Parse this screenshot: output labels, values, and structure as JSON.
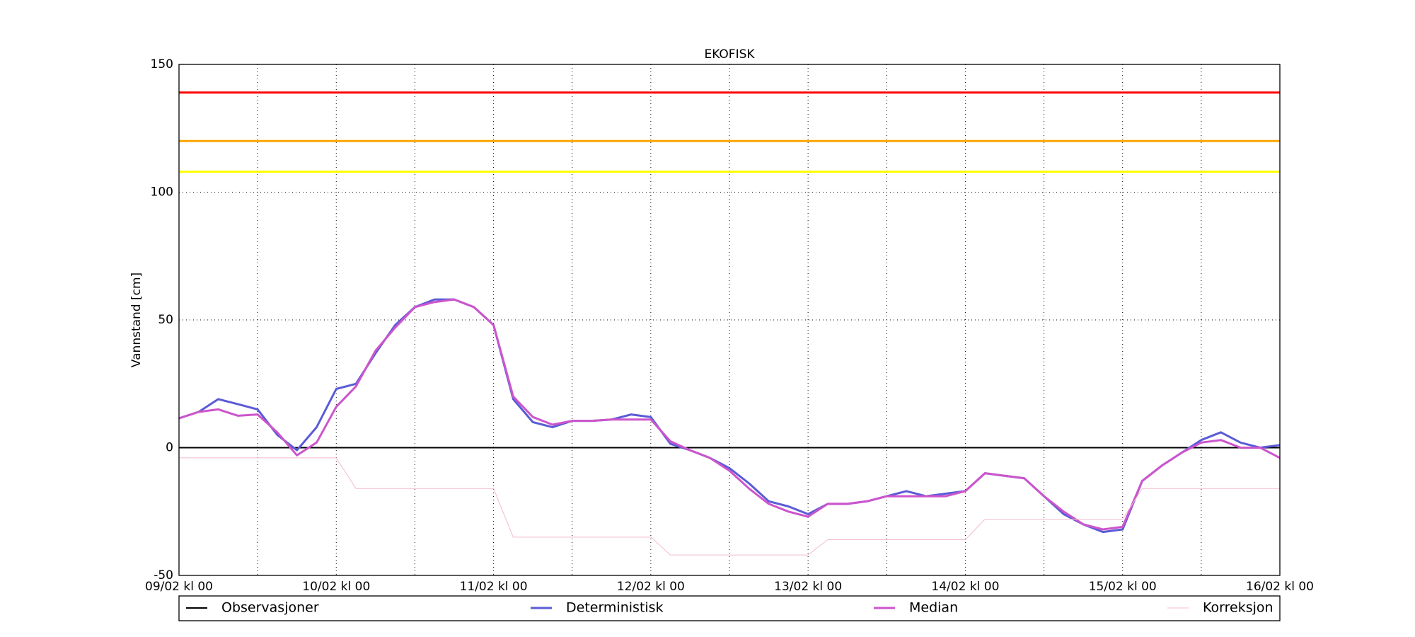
{
  "chart_data": {
    "type": "line",
    "title": "EKOFISK",
    "y_label": "Vannstand [cm]",
    "x": [
      0,
      3,
      6,
      9,
      12,
      15,
      18,
      21,
      24,
      27,
      30,
      33,
      36,
      39,
      42,
      45,
      48,
      51,
      54,
      57,
      60,
      63,
      66,
      69,
      72,
      75,
      78,
      81,
      84,
      87,
      90,
      93,
      96,
      99,
      102,
      105,
      108,
      111,
      114,
      117,
      120,
      123,
      126,
      129,
      132,
      135,
      138,
      141,
      144,
      147,
      150,
      153,
      156,
      159,
      162,
      165,
      168
    ],
    "xlim": [
      0,
      168
    ],
    "xticks": [
      {
        "value": 0,
        "label": "09/02 kl 00"
      },
      {
        "value": 12,
        "label": null
      },
      {
        "value": 24,
        "label": "10/02 kl 00"
      },
      {
        "value": 36,
        "label": null
      },
      {
        "value": 48,
        "label": "11/02 kl 00"
      },
      {
        "value": 60,
        "label": null
      },
      {
        "value": 72,
        "label": "12/02 kl 00"
      },
      {
        "value": 84,
        "label": null
      },
      {
        "value": 96,
        "label": "13/02 kl 00"
      },
      {
        "value": 108,
        "label": null
      },
      {
        "value": 120,
        "label": "14/02 kl 00"
      },
      {
        "value": 132,
        "label": null
      },
      {
        "value": 144,
        "label": "15/02 kl 00"
      },
      {
        "value": 156,
        "label": null
      },
      {
        "value": 168,
        "label": "16/02 kl 00"
      }
    ],
    "ylim": [
      -50,
      150
    ],
    "yticks": [
      -50,
      0,
      50,
      100,
      150
    ],
    "grid": true,
    "reference_lines": [
      {
        "value": 139,
        "color": "#ff0000"
      },
      {
        "value": 120,
        "color": "#ffa500"
      },
      {
        "value": 108,
        "color": "#ffff00"
      },
      {
        "value": 0,
        "color": "#000000"
      }
    ],
    "series": [
      {
        "name": "Observasjoner",
        "color": "#000000",
        "values": [
          null,
          null,
          null,
          null,
          null,
          null,
          null,
          null,
          null,
          null,
          null,
          null,
          null,
          null,
          null,
          null,
          null,
          null,
          null,
          null,
          null,
          null,
          null,
          null,
          null,
          null,
          null,
          null,
          null,
          null,
          null,
          null,
          null,
          null,
          null,
          null,
          null,
          null,
          null,
          null,
          null,
          null,
          null,
          null,
          null,
          null,
          null,
          null,
          null,
          null,
          null,
          null,
          null,
          null,
          null,
          null,
          null
        ]
      },
      {
        "name": "Deterministisk",
        "color": "#5b5bd6",
        "values": [
          11.5,
          14,
          19,
          17,
          15,
          5,
          -1,
          8,
          23,
          25,
          37,
          48,
          55,
          58,
          58,
          55,
          48,
          19,
          10,
          8,
          10.5,
          10.5,
          11,
          13,
          12,
          1.5,
          -1,
          -4,
          -8,
          -14,
          -21,
          -23,
          -26,
          -22,
          -22,
          -21,
          -19,
          -17,
          -19,
          -18,
          -17,
          -10,
          -11,
          -12,
          -19,
          -26,
          -30,
          -33,
          -32,
          -13,
          -7,
          -2,
          3,
          6,
          2,
          0,
          1
        ]
      },
      {
        "name": "Median",
        "color": "#cc55cc",
        "values": [
          11.5,
          14,
          15,
          12.5,
          13,
          6,
          -3,
          2,
          16,
          24,
          38,
          47,
          55,
          57,
          58,
          55,
          48,
          20,
          12,
          9,
          10.5,
          10.5,
          11,
          11,
          11,
          2.5,
          -1,
          -4,
          -9,
          -16,
          -22,
          -25,
          -27,
          -22,
          -22,
          -21,
          -19,
          -19,
          -19,
          -19,
          -17,
          -10,
          -11,
          -12,
          -19,
          -25,
          -30,
          -32,
          -31,
          -13,
          -7,
          -2,
          2,
          3,
          0,
          0,
          -4
        ]
      },
      {
        "name": "Korreksjon",
        "color": "#f4bccc",
        "values": [
          -4,
          -4,
          -4,
          -4,
          -4,
          -4,
          -4,
          -4,
          -4,
          -16,
          -16,
          -16,
          -16,
          -16,
          -16,
          -16,
          -16,
          -35,
          -35,
          -35,
          -35,
          -35,
          -35,
          -35,
          -35,
          -42,
          -42,
          -42,
          -42,
          -42,
          -42,
          -42,
          -42,
          -36,
          -36,
          -36,
          -36,
          -36,
          -36,
          -36,
          -36,
          -28,
          -28,
          -28,
          -28,
          -28,
          -28,
          -28,
          -28,
          -16,
          -16,
          -16,
          -16,
          -16,
          -16,
          -16,
          -16
        ]
      }
    ]
  }
}
